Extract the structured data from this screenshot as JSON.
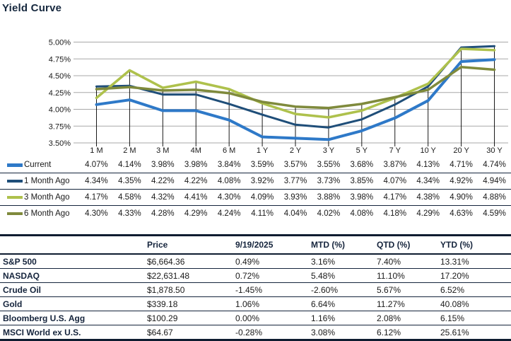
{
  "title": "Yield Curve",
  "colors": {
    "current": "#2E79C8",
    "one_month": "#1F4E79",
    "three_month": "#AEC14C",
    "six_month": "#7F8A3C",
    "grid": "#A8A8A8",
    "drop_line": "#000000",
    "navy_text": "#15243C",
    "value_text": "#1A1A1A"
  },
  "chart_data": {
    "type": "line",
    "title": "Yield Curve",
    "categories": [
      "1 M",
      "2 M",
      "3 M",
      "4M",
      "6 M",
      "1 Y",
      "2 Y",
      "3 Y",
      "5 Y",
      "7 Y",
      "10 Y",
      "20 Y",
      "30 Y"
    ],
    "ytick_labels": [
      "5.00%",
      "4.75%",
      "4.50%",
      "4.25%",
      "4.00%",
      "3.75%",
      "3.50%"
    ],
    "ylim": [
      3.5,
      5.0
    ],
    "grid": "horizontal",
    "drop_lines": true,
    "legend_position": "left-table",
    "series": [
      {
        "name": "Current",
        "color": "#2E79C8",
        "width": 4,
        "values": [
          4.07,
          4.14,
          3.98,
          3.98,
          3.84,
          3.59,
          3.57,
          3.55,
          3.68,
          3.87,
          4.13,
          4.71,
          4.74
        ]
      },
      {
        "name": "1 Month Ago",
        "color": "#1F4E79",
        "width": 3,
        "values": [
          4.34,
          4.35,
          4.22,
          4.22,
          4.08,
          3.92,
          3.77,
          3.73,
          3.85,
          4.07,
          4.34,
          4.92,
          4.94
        ]
      },
      {
        "name": "3 Month Ago",
        "color": "#AEC14C",
        "width": 3.5,
        "values": [
          4.17,
          4.58,
          4.32,
          4.41,
          4.3,
          4.09,
          3.93,
          3.88,
          3.98,
          4.17,
          4.38,
          4.9,
          4.88
        ]
      },
      {
        "name": "6 Month Ago",
        "color": "#7F8A3C",
        "width": 3.5,
        "values": [
          4.3,
          4.33,
          4.28,
          4.29,
          4.24,
          4.11,
          4.04,
          4.02,
          4.08,
          4.18,
          4.29,
          4.63,
          4.59
        ]
      }
    ]
  },
  "market_table": {
    "headers": [
      "",
      "Price",
      "9/19/2025",
      "MTD (%)",
      "QTD (%)",
      "YTD (%)"
    ],
    "rows": [
      {
        "label": "S&P 500",
        "cells": [
          "$6,664.36",
          "0.49%",
          "3.16%",
          "7.40%",
          "13.31%"
        ]
      },
      {
        "label": "NASDAQ",
        "cells": [
          "$22,631.48",
          "0.72%",
          "5.48%",
          "11.10%",
          "17.20%"
        ]
      },
      {
        "label": "Crude Oil",
        "cells": [
          "$1,878.50",
          "-1.45%",
          "-2.60%",
          "5.67%",
          "6.52%"
        ]
      },
      {
        "label": "Gold",
        "cells": [
          "$339.18",
          "1.06%",
          "6.64%",
          "11.27%",
          "40.08%"
        ]
      },
      {
        "label": "Bloomberg U.S. Agg",
        "cells": [
          "$100.29",
          "0.00%",
          "1.16%",
          "2.08%",
          "6.15%"
        ]
      },
      {
        "label": "MSCI World ex U.S.",
        "cells": [
          "$64.67",
          "-0.28%",
          "3.08%",
          "6.12%",
          "25.61%"
        ]
      }
    ]
  }
}
